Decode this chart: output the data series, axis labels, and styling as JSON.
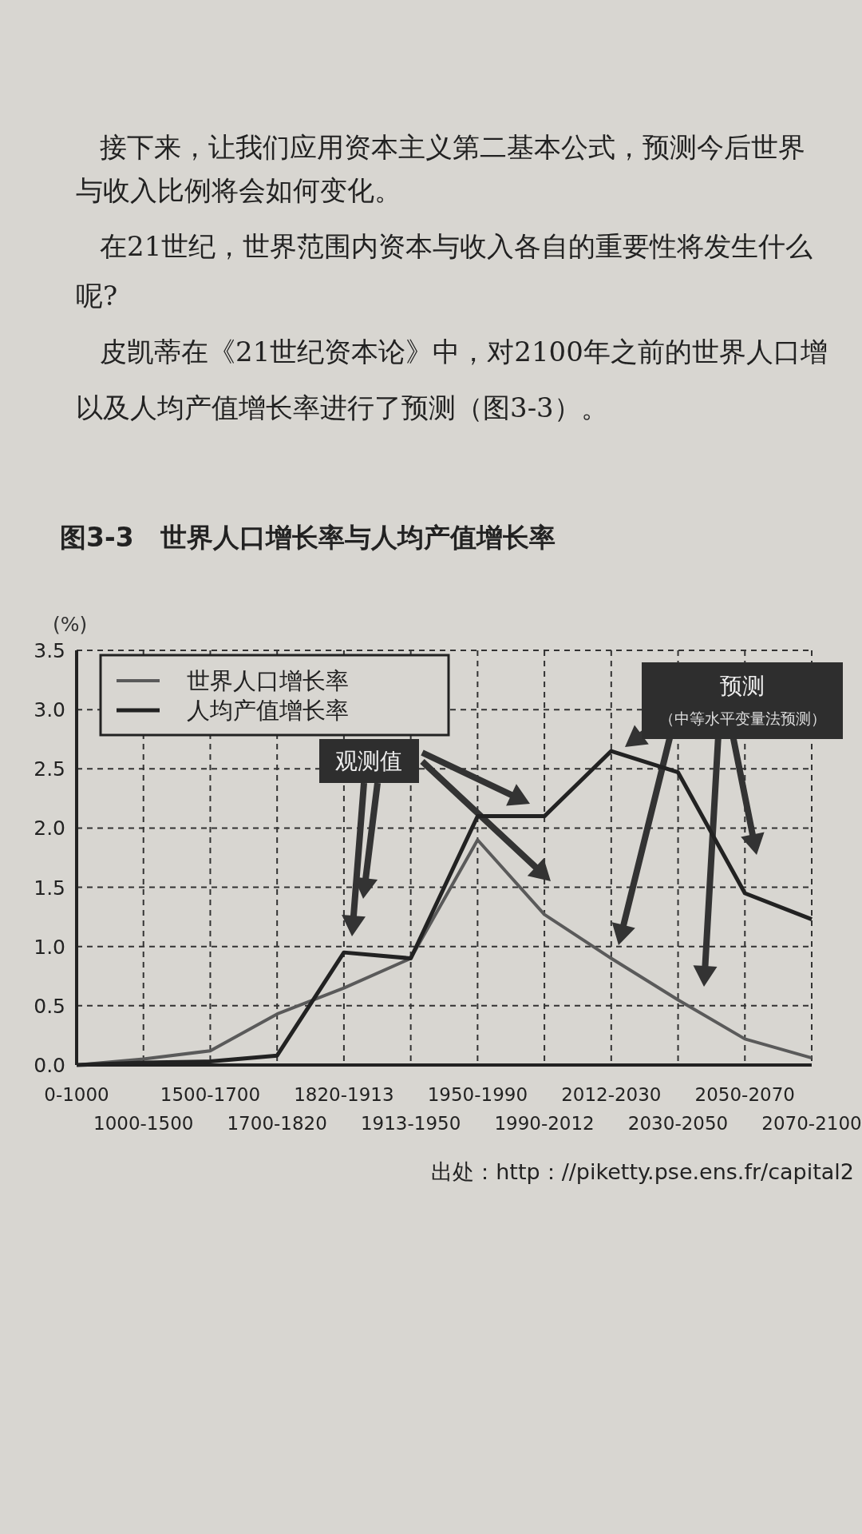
{
  "chart_data": {
    "type": "line",
    "title": "图3-3　世界人口增长率与人均产值增长率",
    "ylabel": "(%)",
    "categories": [
      "0-1000",
      "1000-1500",
      "1500-1700",
      "1700-1820",
      "1820-1913",
      "1913-1950",
      "1950-1990",
      "1990-2012",
      "2012-2030",
      "2030-2050",
      "2050-2070",
      "2070-2100"
    ],
    "series": [
      {
        "name": "世界人口增长率",
        "color": "#5a5a5a",
        "values": [
          0,
          0.05,
          0.12,
          0.43,
          0.65,
          0.9,
          1.9,
          1.27,
          0.9,
          0.55,
          0.22,
          0.06
        ]
      },
      {
        "name": "人均产值增长率",
        "color": "#222222",
        "values": [
          0,
          0.02,
          0.03,
          0.08,
          0.95,
          0.9,
          2.1,
          2.1,
          2.65,
          2.47,
          1.45,
          1.23
        ]
      }
    ],
    "ylim": [
      0,
      3.5
    ],
    "yticks": [
      {
        "value": 0,
        "label": "0.0"
      },
      {
        "value": 0.5,
        "label": "0.5"
      },
      {
        "value": 1,
        "label": "1.0"
      },
      {
        "value": 1.5,
        "label": "1.5"
      },
      {
        "value": 2,
        "label": "2.0"
      },
      {
        "value": 2.5,
        "label": "2.5"
      },
      {
        "value": 3,
        "label": "3.0"
      },
      {
        "value": 3.5,
        "label": "3.5"
      }
    ],
    "grid": true,
    "legend": "top left",
    "annotations": [
      "接下来，让我们应用资本主义第二基本公式，预测今后世界",
      "与收入比例将会如何变化。",
      "在21世纪，世界范围内资本与收入各自的重要性将发生什么",
      "呢?",
      "皮凯蒂在《21世纪资本论》中，对2100年之前的世界人口增",
      "以及人均产值增长率进行了预测（图3-3）。",
      "观测值",
      "预测",
      "（中等水平变量法预测）",
      "出处：http：//piketty.pse.ens.fr/capital2"
    ]
  }
}
